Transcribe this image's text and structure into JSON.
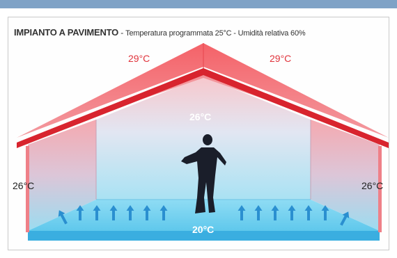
{
  "title": {
    "main": "IMPIANTO A PAVIMENTO",
    "separator": " - ",
    "subtitle": "Temperatura programmata 25°C - Umidità relativa 60%"
  },
  "temperatures": {
    "roof_left": "29°C",
    "roof_right": "29°C",
    "center": "26°C",
    "wall_left": "26°C",
    "wall_right": "26°C",
    "floor": "20°C"
  },
  "colors": {
    "top_bar": "#7fa2c6",
    "roof": "#f0565c",
    "roof_edge": "#d8242e",
    "warm": "#f6a4a8",
    "cool": "#9edcf0",
    "floor": "#3aaee0",
    "arrow": "#2a8fd0",
    "person": "#1a1e2a"
  },
  "icons": {
    "arrow": "up-arrow-icon",
    "person": "person-silhouette"
  }
}
